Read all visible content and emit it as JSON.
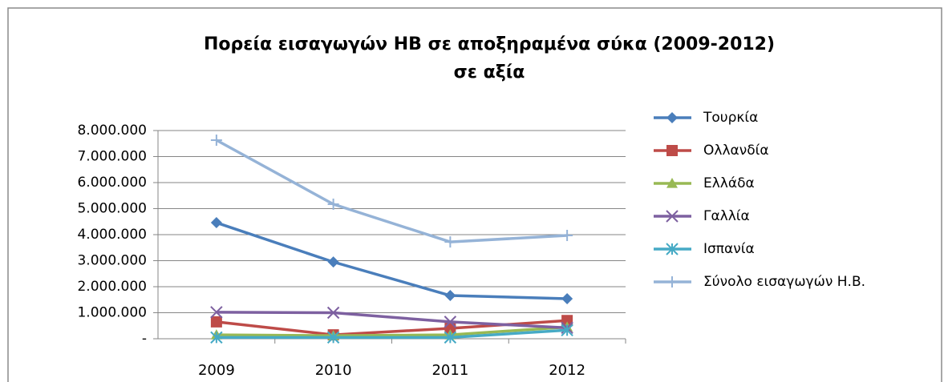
{
  "chart_data": {
    "type": "line",
    "title": [
      "Πορεία εισαγωγών ΗΒ σε αποξηραμένα σύκα (2009-2012)",
      "σε αξία"
    ],
    "categories": [
      "2009",
      "2010",
      "2011",
      "2012"
    ],
    "series": [
      {
        "name": "Τουρκία",
        "color": "#4a7ebb",
        "marker": "diamond",
        "values": [
          4460000,
          2950000,
          1660000,
          1540000
        ]
      },
      {
        "name": "Ολλανδία",
        "color": "#be4b48",
        "marker": "square",
        "values": [
          650000,
          150000,
          400000,
          700000
        ]
      },
      {
        "name": "Ελλάδα",
        "color": "#98b954",
        "marker": "triangle",
        "values": [
          150000,
          120000,
          150000,
          450000
        ]
      },
      {
        "name": "Γαλλία",
        "color": "#7d60a0",
        "marker": "x",
        "values": [
          1020000,
          1000000,
          650000,
          420000
        ]
      },
      {
        "name": "Ισπανία",
        "color": "#46aac5",
        "marker": "star",
        "values": [
          50000,
          50000,
          50000,
          330000
        ]
      },
      {
        "name": "Σύνολο εισαγωγών Η.Β.",
        "color": "#95b3d7",
        "marker": "plus",
        "values": [
          7630000,
          5170000,
          3720000,
          3970000
        ]
      }
    ],
    "ylim": [
      0,
      8000000
    ],
    "yticks": [
      {
        "value": 0,
        "label": "-"
      },
      {
        "value": 1000000,
        "label": "1.000.000"
      },
      {
        "value": 2000000,
        "label": "2.000.000"
      },
      {
        "value": 3000000,
        "label": "3.000.000"
      },
      {
        "value": 4000000,
        "label": "4.000.000"
      },
      {
        "value": 5000000,
        "label": "5.000.000"
      },
      {
        "value": 6000000,
        "label": "6.000.000"
      },
      {
        "value": 7000000,
        "label": "7.000.000"
      },
      {
        "value": 8000000,
        "label": "8.000.000"
      }
    ],
    "grid": true
  }
}
